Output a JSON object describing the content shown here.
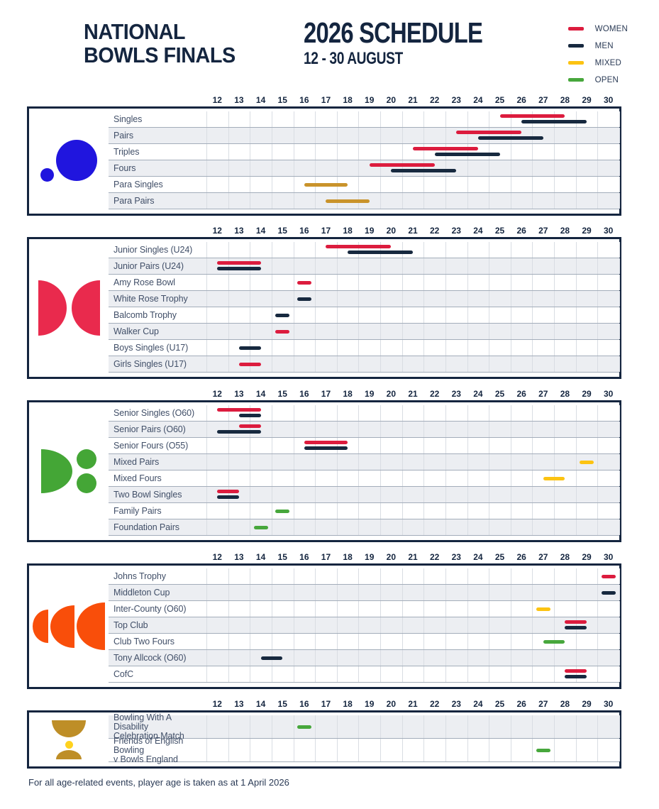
{
  "header": {
    "brand_line1": "NATIONAL",
    "brand_line2": "BOWLS FINALS",
    "title": "2026 SCHEDULE",
    "subtitle": "12 - 30 AUGUST",
    "legend": [
      {
        "label": "WOMEN",
        "category": "women"
      },
      {
        "label": "MEN",
        "category": "men"
      },
      {
        "label": "MIXED",
        "category": "mixed"
      },
      {
        "label": "OPEN",
        "category": "open"
      }
    ]
  },
  "colors": {
    "navy": "#14253F",
    "women": "#DC1C3E",
    "men": "#17293F",
    "mixed": "#FCC312",
    "open": "#47A73C",
    "para": "#C9932B",
    "row_shade": "#ECEEF2",
    "gridline": "#D9DDE3",
    "separator": "#A3ADBA",
    "icon_blue": "#2015DE",
    "icon_red": "#E92A4D",
    "icon_green": "#44A636",
    "icon_orange": "#F94E0A",
    "trophy_gold": "#BE8E27",
    "trophy_yellow": "#FFD21E"
  },
  "chart_data": {
    "type": "bar",
    "subtype": "gantt-schedule",
    "title": "2026 SCHEDULE",
    "subtitle": "12 - 30 AUGUST",
    "legend_position": "top-right",
    "x_axis": {
      "unit": "August date",
      "min": 12,
      "max": 30,
      "days": [
        "12",
        "13",
        "14",
        "15",
        "16",
        "17",
        "18",
        "19",
        "20",
        "21",
        "22",
        "23",
        "24",
        "25",
        "26",
        "27",
        "28",
        "29",
        "30"
      ]
    },
    "sections": [
      {
        "icon": "blue-dot-and-circle-icon",
        "rows": [
          {
            "label": "Singles",
            "bars": [
              {
                "category": "women",
                "start": 25,
                "end": 28
              },
              {
                "category": "men",
                "start": 26,
                "end": 29
              }
            ]
          },
          {
            "label": "Pairs",
            "bars": [
              {
                "category": "women",
                "start": 23,
                "end": 26
              },
              {
                "category": "men",
                "start": 24,
                "end": 27
              }
            ]
          },
          {
            "label": "Triples",
            "bars": [
              {
                "category": "women",
                "start": 21,
                "end": 24
              },
              {
                "category": "men",
                "start": 22,
                "end": 25
              }
            ]
          },
          {
            "label": "Fours",
            "bars": [
              {
                "category": "women",
                "start": 19,
                "end": 22
              },
              {
                "category": "men",
                "start": 20,
                "end": 23
              }
            ]
          },
          {
            "label": "Para Singles",
            "bars": [
              {
                "category": "para",
                "start": 16,
                "end": 18
              }
            ]
          },
          {
            "label": "Para Pairs",
            "bars": [
              {
                "category": "para",
                "start": 17,
                "end": 19
              }
            ]
          }
        ]
      },
      {
        "icon": "red-facing-half-discs-icon",
        "rows": [
          {
            "label": "Junior Singles (U24)",
            "bars": [
              {
                "category": "women",
                "start": 17,
                "end": 20
              },
              {
                "category": "men",
                "start": 18,
                "end": 21
              }
            ]
          },
          {
            "label": "Junior Pairs (U24)",
            "bars": [
              {
                "category": "women",
                "start": 12,
                "end": 14
              },
              {
                "category": "men",
                "start": 12,
                "end": 14
              }
            ]
          },
          {
            "label": "Amy Rose Bowl",
            "bars": [
              {
                "category": "women",
                "start": 16,
                "end": 16
              }
            ]
          },
          {
            "label": "White Rose Trophy",
            "bars": [
              {
                "category": "men",
                "start": 16,
                "end": 16
              }
            ]
          },
          {
            "label": "Balcomb Trophy",
            "bars": [
              {
                "category": "men",
                "start": 15,
                "end": 15
              }
            ]
          },
          {
            "label": "Walker Cup",
            "bars": [
              {
                "category": "women",
                "start": 15,
                "end": 15
              }
            ]
          },
          {
            "label": "Boys Singles (U17)",
            "bars": [
              {
                "category": "men",
                "start": 13,
                "end": 14
              }
            ]
          },
          {
            "label": "Girls Singles (U17)",
            "bars": [
              {
                "category": "women",
                "start": 13,
                "end": 14
              }
            ]
          }
        ]
      },
      {
        "icon": "green-half-disc-two-dots-icon",
        "rows": [
          {
            "label": "Senior Singles (O60)",
            "bars": [
              {
                "category": "women",
                "start": 12,
                "end": 14
              },
              {
                "category": "men",
                "start": 13,
                "end": 14
              }
            ]
          },
          {
            "label": "Senior Pairs (O60)",
            "bars": [
              {
                "category": "women",
                "start": 13,
                "end": 14
              },
              {
                "category": "men",
                "start": 12,
                "end": 14
              }
            ]
          },
          {
            "label": "Senior Fours (O55)",
            "bars": [
              {
                "category": "women",
                "start": 16,
                "end": 18
              },
              {
                "category": "men",
                "start": 16,
                "end": 18
              }
            ]
          },
          {
            "label": "Mixed Pairs",
            "bars": [
              {
                "category": "mixed",
                "start": 29,
                "end": 29
              }
            ]
          },
          {
            "label": "Mixed Fours",
            "bars": [
              {
                "category": "mixed",
                "start": 27,
                "end": 28
              }
            ]
          },
          {
            "label": "Two Bowl Singles",
            "bars": [
              {
                "category": "women",
                "start": 12,
                "end": 13
              },
              {
                "category": "men",
                "start": 12,
                "end": 13
              }
            ]
          },
          {
            "label": "Family Pairs",
            "bars": [
              {
                "category": "open",
                "start": 15,
                "end": 15
              }
            ]
          },
          {
            "label": "Foundation Pairs",
            "bars": [
              {
                "category": "open",
                "start": 14,
                "end": 14
              }
            ]
          }
        ]
      },
      {
        "icon": "orange-crescents-icon",
        "rows": [
          {
            "label": "Johns Trophy",
            "bars": [
              {
                "category": "women",
                "start": 30,
                "end": 30
              }
            ]
          },
          {
            "label": "Middleton Cup",
            "bars": [
              {
                "category": "men",
                "start": 30,
                "end": 30
              }
            ]
          },
          {
            "label": "Inter-County (O60)",
            "bars": [
              {
                "category": "mixed",
                "start": 27,
                "end": 27
              }
            ]
          },
          {
            "label": "Top Club",
            "bars": [
              {
                "category": "women",
                "start": 28,
                "end": 29
              },
              {
                "category": "men",
                "start": 28,
                "end": 29
              }
            ]
          },
          {
            "label": "Club Two Fours",
            "bars": [
              {
                "category": "open",
                "start": 27,
                "end": 28
              }
            ]
          },
          {
            "label": "Tony Allcock (O60)",
            "bars": [
              {
                "category": "men",
                "start": 14,
                "end": 15
              }
            ]
          },
          {
            "label": "CofC",
            "bars": [
              {
                "category": "women",
                "start": 28,
                "end": 29
              },
              {
                "category": "men",
                "start": 28,
                "end": 29
              }
            ]
          }
        ]
      },
      {
        "icon": "gold-trophy-icon",
        "tall_rows": true,
        "first_row_shaded": true,
        "rows": [
          {
            "label": "Bowling With A Disability\nCelebration Match",
            "bars": [
              {
                "category": "open",
                "start": 16,
                "end": 16
              }
            ]
          },
          {
            "label": "Friends of English Bowling\nv Bowls England",
            "bars": [
              {
                "category": "open",
                "start": 27,
                "end": 27
              }
            ]
          }
        ]
      }
    ]
  },
  "footer": {
    "note": "For all age-related events, player age is taken as at 1 April 2026"
  }
}
